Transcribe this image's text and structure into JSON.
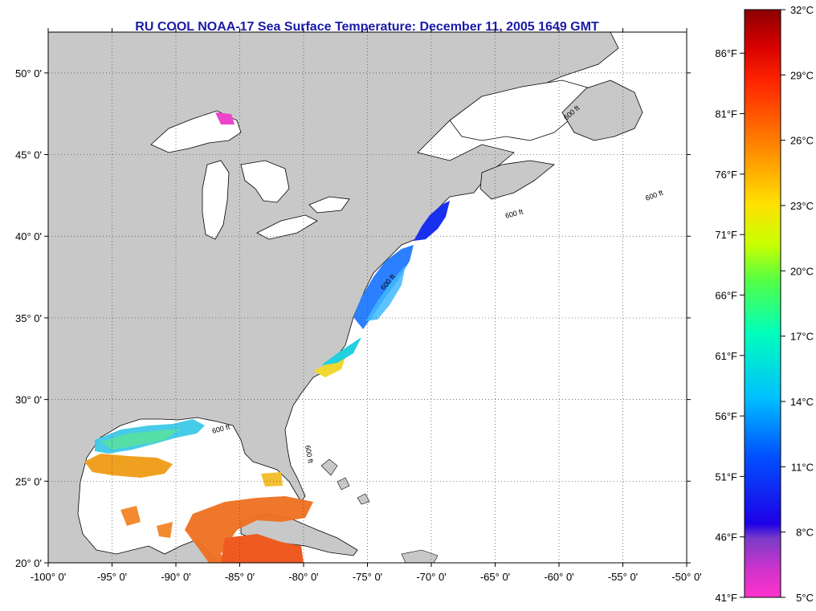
{
  "title": "RU COOL  NOAA-17  Sea Surface Temperature:  December 11, 2005 1649 GMT",
  "map": {
    "lon_range": [
      -100,
      -50
    ],
    "lat_range": [
      20,
      52.5
    ],
    "lon_ticks": [
      {
        "value": -100,
        "label": "-100° 0'"
      },
      {
        "value": -95,
        "label": "-95° 0'"
      },
      {
        "value": -90,
        "label": "-90° 0'"
      },
      {
        "value": -85,
        "label": "-85° 0'"
      },
      {
        "value": -80,
        "label": "-80° 0'"
      },
      {
        "value": -75,
        "label": "-75° 0'"
      },
      {
        "value": -70,
        "label": "-70° 0'"
      },
      {
        "value": -65,
        "label": "-65° 0'"
      },
      {
        "value": -60,
        "label": "-60° 0'"
      },
      {
        "value": -55,
        "label": "-55° 0'"
      },
      {
        "value": -50,
        "label": "-50° 0'"
      }
    ],
    "lat_ticks": [
      {
        "value": 20,
        "label": "20° 0'"
      },
      {
        "value": 25,
        "label": "25° 0'"
      },
      {
        "value": 30,
        "label": "30° 0'"
      },
      {
        "value": 35,
        "label": "35° 0'"
      },
      {
        "value": 40,
        "label": "40° 0'"
      },
      {
        "value": 45,
        "label": "45° 0'"
      },
      {
        "value": 50,
        "label": "50° 0'"
      }
    ],
    "contour_label": "600 ft",
    "colors": {
      "land": "#c8c8c8",
      "water": "#ffffff",
      "grid": "#555555"
    }
  },
  "colorbar": {
    "celsius_ticks": [
      "32°C",
      "29°C",
      "26°C",
      "23°C",
      "20°C",
      "17°C",
      "14°C",
      "11°C",
      "8°C",
      "5°C"
    ],
    "fahrenheit_ticks": [
      "86°F",
      "81°F",
      "76°F",
      "71°F",
      "66°F",
      "61°F",
      "56°F",
      "51°F",
      "46°F",
      "41°F"
    ],
    "fahrenheit_values": [
      86,
      81,
      76,
      71,
      66,
      61,
      56,
      51,
      46,
      41
    ],
    "temp_range_c": [
      5,
      32
    ],
    "colors_top_to_bottom": [
      "#8b0000",
      "#ff0000",
      "#ff8800",
      "#ffff00",
      "#66ff33",
      "#00ffcc",
      "#00aaff",
      "#0000ff",
      "#7a3cc8",
      "#ff33cc"
    ]
  }
}
